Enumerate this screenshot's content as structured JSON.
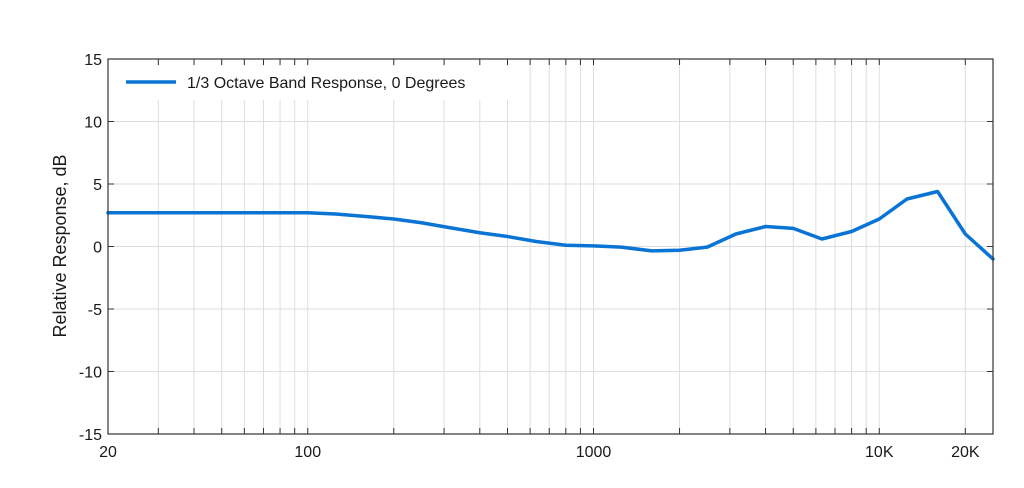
{
  "chart_data": {
    "type": "line",
    "title": "",
    "xlabel": "",
    "ylabel": "Relative Response, dB",
    "x_scale": "log",
    "xlim": [
      20,
      25000
    ],
    "ylim": [
      -15,
      15
    ],
    "grid": true,
    "legend_position": "top-left",
    "x_major_ticks": [
      {
        "value": 20,
        "label": "20"
      },
      {
        "value": 100,
        "label": "100"
      },
      {
        "value": 1000,
        "label": "1000"
      },
      {
        "value": 10000,
        "label": "10K"
      },
      {
        "value": 20000,
        "label": "20K"
      }
    ],
    "x_minor_ticks": [
      30,
      40,
      50,
      60,
      70,
      80,
      90,
      200,
      300,
      400,
      500,
      600,
      700,
      800,
      900,
      2000,
      3000,
      4000,
      5000,
      6000,
      7000,
      8000,
      9000
    ],
    "y_ticks": [
      {
        "value": 15,
        "label": "15"
      },
      {
        "value": 10,
        "label": "10"
      },
      {
        "value": 5,
        "label": "5"
      },
      {
        "value": 0,
        "label": "0"
      },
      {
        "value": -5,
        "label": "-5"
      },
      {
        "value": -10,
        "label": "-10"
      },
      {
        "value": -15,
        "label": "-15"
      }
    ],
    "series": [
      {
        "name": "1/3 Octave Band Response, 0 Degrees",
        "color": "#0a74d4",
        "x": [
          20,
          25,
          31.5,
          40,
          50,
          63,
          80,
          100,
          125,
          160,
          200,
          250,
          315,
          400,
          500,
          630,
          800,
          1000,
          1250,
          1600,
          2000,
          2500,
          3150,
          4000,
          5000,
          6300,
          8000,
          10000,
          12500,
          16000,
          20000,
          25000
        ],
        "y": [
          2.7,
          2.7,
          2.7,
          2.7,
          2.7,
          2.7,
          2.7,
          2.7,
          2.6,
          2.4,
          2.2,
          1.9,
          1.5,
          1.1,
          0.8,
          0.4,
          0.1,
          0.05,
          -0.05,
          -0.35,
          -0.3,
          -0.05,
          1.0,
          1.6,
          1.45,
          0.6,
          1.2,
          2.2,
          3.8,
          4.4,
          1.0,
          -1.0
        ]
      }
    ]
  }
}
